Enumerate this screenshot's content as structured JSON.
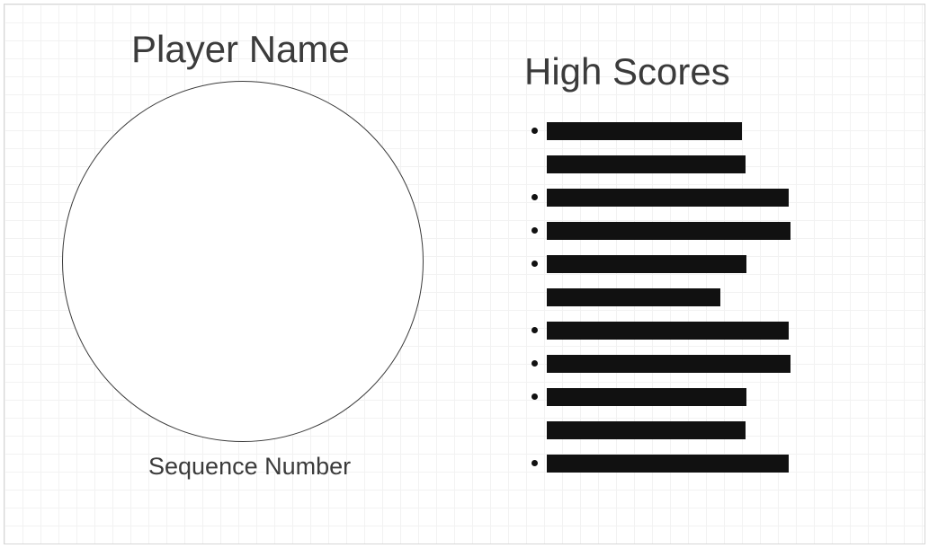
{
  "player": {
    "name_label": "Player Name",
    "sequence_label": "Sequence Number"
  },
  "high_scores": {
    "title": "High Scores",
    "entries": [
      {
        "bulleted": true,
        "bar": "redacted"
      },
      {
        "bulleted": false,
        "bar": "redacted"
      },
      {
        "bulleted": true,
        "bar": "redacted"
      },
      {
        "bulleted": true,
        "bar": "redacted"
      },
      {
        "bulleted": true,
        "bar": "redacted"
      },
      {
        "bulleted": false,
        "bar": "redacted"
      },
      {
        "bulleted": true,
        "bar": "redacted"
      },
      {
        "bulleted": true,
        "bar": "redacted"
      },
      {
        "bulleted": true,
        "bar": "redacted"
      },
      {
        "bulleted": false,
        "bar": "redacted"
      },
      {
        "bulleted": true,
        "bar": "redacted"
      }
    ]
  },
  "colors": {
    "text": "#3b3b3b",
    "bar": "#111111",
    "grid": "#f2f2f2"
  }
}
